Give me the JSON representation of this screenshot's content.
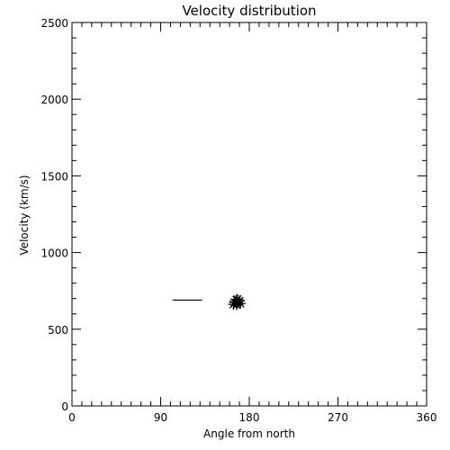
{
  "chart_data": {
    "type": "scatter",
    "title": "Velocity distribution",
    "xlabel": "Angle from north",
    "ylabel": "Velocity (km/s)",
    "xlim": [
      0,
      360
    ],
    "ylim": [
      0,
      2500
    ],
    "x_ticks": [
      0,
      90,
      180,
      270,
      360
    ],
    "y_ticks": [
      0,
      500,
      1000,
      1500,
      2000,
      2500
    ],
    "grid": false,
    "legend": "none",
    "line_segment": {
      "x": [
        102,
        132
      ],
      "y": [
        690,
        690
      ]
    },
    "series": [
      {
        "marker": "asterisk",
        "points": [
          {
            "x": 168,
            "y": 695
          },
          {
            "x": 167,
            "y": 690
          },
          {
            "x": 170,
            "y": 685
          },
          {
            "x": 165,
            "y": 675
          },
          {
            "x": 168,
            "y": 672
          },
          {
            "x": 171,
            "y": 668
          },
          {
            "x": 164,
            "y": 662
          },
          {
            "x": 167,
            "y": 660
          }
        ]
      }
    ],
    "colors": {
      "axes": "#000000",
      "marks": "#000000",
      "background": "#ffffff"
    }
  }
}
